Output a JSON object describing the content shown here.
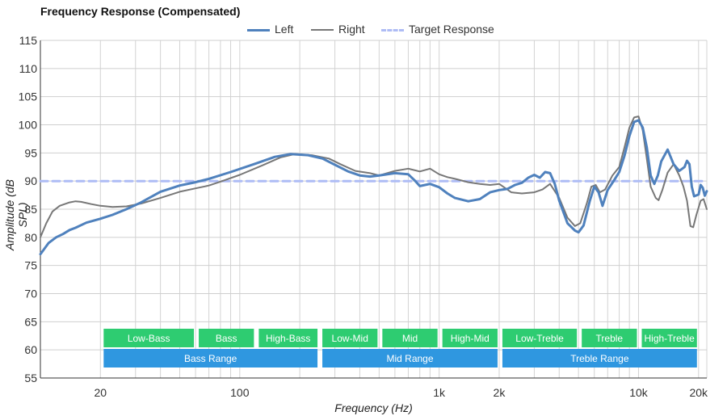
{
  "chart_data": {
    "type": "line",
    "title": "Frequency Response (Compensated)",
    "xlabel": "Frequency (Hz)",
    "ylabel": "Amplitude (dB SPL)",
    "x_scale": "log",
    "xlim": [
      10,
      22000
    ],
    "ylim": [
      55,
      115
    ],
    "grid": true,
    "legend_position": "top-center",
    "x_ticks": [
      {
        "value": 20,
        "label": "20"
      },
      {
        "value": 100,
        "label": "100"
      },
      {
        "value": 1000,
        "label": "1k"
      },
      {
        "value": 2000,
        "label": "2k"
      },
      {
        "value": 10000,
        "label": "10k"
      },
      {
        "value": 20000,
        "label": "20k"
      }
    ],
    "y_ticks": [
      55,
      60,
      65,
      70,
      75,
      80,
      85,
      90,
      95,
      100,
      105,
      110,
      115
    ],
    "series": [
      {
        "name": "Left",
        "color": "#4f81bd",
        "points": [
          [
            10,
            77
          ],
          [
            11,
            79
          ],
          [
            12,
            80
          ],
          [
            13,
            80.6
          ],
          [
            14,
            81.3
          ],
          [
            15,
            81.7
          ],
          [
            17,
            82.6
          ],
          [
            20,
            83.3
          ],
          [
            23,
            84
          ],
          [
            27,
            85
          ],
          [
            32,
            86.2
          ],
          [
            40,
            88.1
          ],
          [
            50,
            89.2
          ],
          [
            60,
            89.8
          ],
          [
            70,
            90.4
          ],
          [
            90,
            91.6
          ],
          [
            120,
            93.1
          ],
          [
            150,
            94.3
          ],
          [
            180,
            94.8
          ],
          [
            220,
            94.6
          ],
          [
            260,
            94
          ],
          [
            300,
            92.9
          ],
          [
            350,
            91.7
          ],
          [
            400,
            91
          ],
          [
            450,
            90.8
          ],
          [
            500,
            91
          ],
          [
            600,
            91.4
          ],
          [
            700,
            91.2
          ],
          [
            750,
            90.2
          ],
          [
            800,
            89.1
          ],
          [
            900,
            89.5
          ],
          [
            1000,
            88.9
          ],
          [
            1100,
            87.8
          ],
          [
            1200,
            87
          ],
          [
            1400,
            86.4
          ],
          [
            1600,
            86.8
          ],
          [
            1800,
            88
          ],
          [
            2000,
            88.4
          ],
          [
            2200,
            88.6
          ],
          [
            2400,
            89.3
          ],
          [
            2600,
            89.7
          ],
          [
            2800,
            90.6
          ],
          [
            3000,
            91.1
          ],
          [
            3200,
            90.6
          ],
          [
            3400,
            91.6
          ],
          [
            3600,
            91.4
          ],
          [
            3800,
            89.5
          ],
          [
            4000,
            86.5
          ],
          [
            4400,
            82.5
          ],
          [
            4800,
            81.2
          ],
          [
            5000,
            80.9
          ],
          [
            5300,
            82.1
          ],
          [
            5700,
            86.5
          ],
          [
            6000,
            89
          ],
          [
            6300,
            88
          ],
          [
            6600,
            85.6
          ],
          [
            7000,
            88.4
          ],
          [
            7500,
            90
          ],
          [
            8000,
            91.6
          ],
          [
            8500,
            94.5
          ],
          [
            9000,
            98
          ],
          [
            9500,
            100.5
          ],
          [
            10000,
            100.8
          ],
          [
            10500,
            99.5
          ],
          [
            11000,
            96
          ],
          [
            11500,
            91
          ],
          [
            12000,
            89.5
          ],
          [
            12500,
            91
          ],
          [
            13000,
            93.5
          ],
          [
            14000,
            95.6
          ],
          [
            15000,
            93
          ],
          [
            16000,
            91.8
          ],
          [
            17000,
            92.5
          ],
          [
            17500,
            93.6
          ],
          [
            18000,
            93
          ],
          [
            18500,
            89
          ],
          [
            19000,
            87.3
          ],
          [
            20000,
            87.6
          ],
          [
            20500,
            89.3
          ],
          [
            21000,
            88.8
          ],
          [
            21500,
            87.4
          ],
          [
            22000,
            88.2
          ]
        ]
      },
      {
        "name": "Right",
        "color": "#777777",
        "points": [
          [
            10,
            80
          ],
          [
            10.7,
            82.5
          ],
          [
            11.5,
            84.6
          ],
          [
            12.5,
            85.6
          ],
          [
            14,
            86.2
          ],
          [
            15,
            86.4
          ],
          [
            16,
            86.3
          ],
          [
            18,
            85.9
          ],
          [
            20,
            85.6
          ],
          [
            23,
            85.4
          ],
          [
            27,
            85.5
          ],
          [
            32,
            86
          ],
          [
            40,
            87
          ],
          [
            50,
            88.1
          ],
          [
            60,
            88.7
          ],
          [
            70,
            89.2
          ],
          [
            80,
            89.9
          ],
          [
            100,
            91.1
          ],
          [
            130,
            92.8
          ],
          [
            160,
            94.2
          ],
          [
            190,
            94.8
          ],
          [
            230,
            94.6
          ],
          [
            280,
            94
          ],
          [
            320,
            93
          ],
          [
            380,
            91.8
          ],
          [
            450,
            91.4
          ],
          [
            500,
            91
          ],
          [
            600,
            91.8
          ],
          [
            700,
            92.2
          ],
          [
            800,
            91.7
          ],
          [
            900,
            92.2
          ],
          [
            1000,
            91.2
          ],
          [
            1100,
            90.7
          ],
          [
            1200,
            90.4
          ],
          [
            1400,
            89.8
          ],
          [
            1600,
            89.5
          ],
          [
            1800,
            89.3
          ],
          [
            2000,
            89.5
          ],
          [
            2300,
            88
          ],
          [
            2600,
            87.8
          ],
          [
            3000,
            88
          ],
          [
            3300,
            88.5
          ],
          [
            3600,
            89.5
          ],
          [
            4000,
            87
          ],
          [
            4400,
            83.5
          ],
          [
            4800,
            82
          ],
          [
            5100,
            82.5
          ],
          [
            5500,
            86
          ],
          [
            5800,
            89
          ],
          [
            6100,
            89.3
          ],
          [
            6400,
            88
          ],
          [
            6800,
            88.5
          ],
          [
            7400,
            91
          ],
          [
            8000,
            92.5
          ],
          [
            8500,
            96
          ],
          [
            9000,
            99.5
          ],
          [
            9500,
            101.3
          ],
          [
            10000,
            101.5
          ],
          [
            10500,
            99
          ],
          [
            11000,
            94
          ],
          [
            11500,
            89
          ],
          [
            12200,
            87
          ],
          [
            12600,
            86.6
          ],
          [
            13200,
            88.5
          ],
          [
            14000,
            91.5
          ],
          [
            15000,
            93
          ],
          [
            16000,
            91
          ],
          [
            16800,
            89
          ],
          [
            17500,
            86.5
          ],
          [
            18200,
            82
          ],
          [
            18800,
            81.8
          ],
          [
            19500,
            84
          ],
          [
            20500,
            86.5
          ],
          [
            21200,
            86.8
          ],
          [
            22000,
            85
          ]
        ]
      },
      {
        "name": "Target Response",
        "color": "#aebcf5",
        "dashed": true,
        "points": [
          [
            10,
            90
          ],
          [
            22000,
            90
          ]
        ]
      }
    ],
    "bands": [
      {
        "label": "Low-Bass",
        "row": 1,
        "from": 20,
        "to": 60,
        "color": "#2ecc71"
      },
      {
        "label": "Bass",
        "row": 1,
        "from": 60,
        "to": 120,
        "color": "#2ecc71"
      },
      {
        "label": "High-Bass",
        "row": 1,
        "from": 120,
        "to": 250,
        "color": "#2ecc71"
      },
      {
        "label": "Low-Mid",
        "row": 1,
        "from": 250,
        "to": 500,
        "color": "#2ecc71"
      },
      {
        "label": "Mid",
        "row": 1,
        "from": 500,
        "to": 1000,
        "color": "#2ecc71"
      },
      {
        "label": "High-Mid",
        "row": 1,
        "from": 1000,
        "to": 2000,
        "color": "#2ecc71"
      },
      {
        "label": "Low-Treble",
        "row": 1,
        "from": 2000,
        "to": 5000,
        "color": "#2ecc71"
      },
      {
        "label": "Treble",
        "row": 1,
        "from": 5000,
        "to": 10000,
        "color": "#2ecc71"
      },
      {
        "label": "High-Treble",
        "row": 1,
        "from": 10000,
        "to": 20000,
        "color": "#2ecc71"
      },
      {
        "label": "Bass Range",
        "row": 2,
        "from": 20,
        "to": 250,
        "color": "#2f97e0"
      },
      {
        "label": "Mid Range",
        "row": 2,
        "from": 250,
        "to": 2000,
        "color": "#2f97e0"
      },
      {
        "label": "Treble Range",
        "row": 2,
        "from": 2000,
        "to": 20000,
        "color": "#2f97e0"
      }
    ]
  }
}
